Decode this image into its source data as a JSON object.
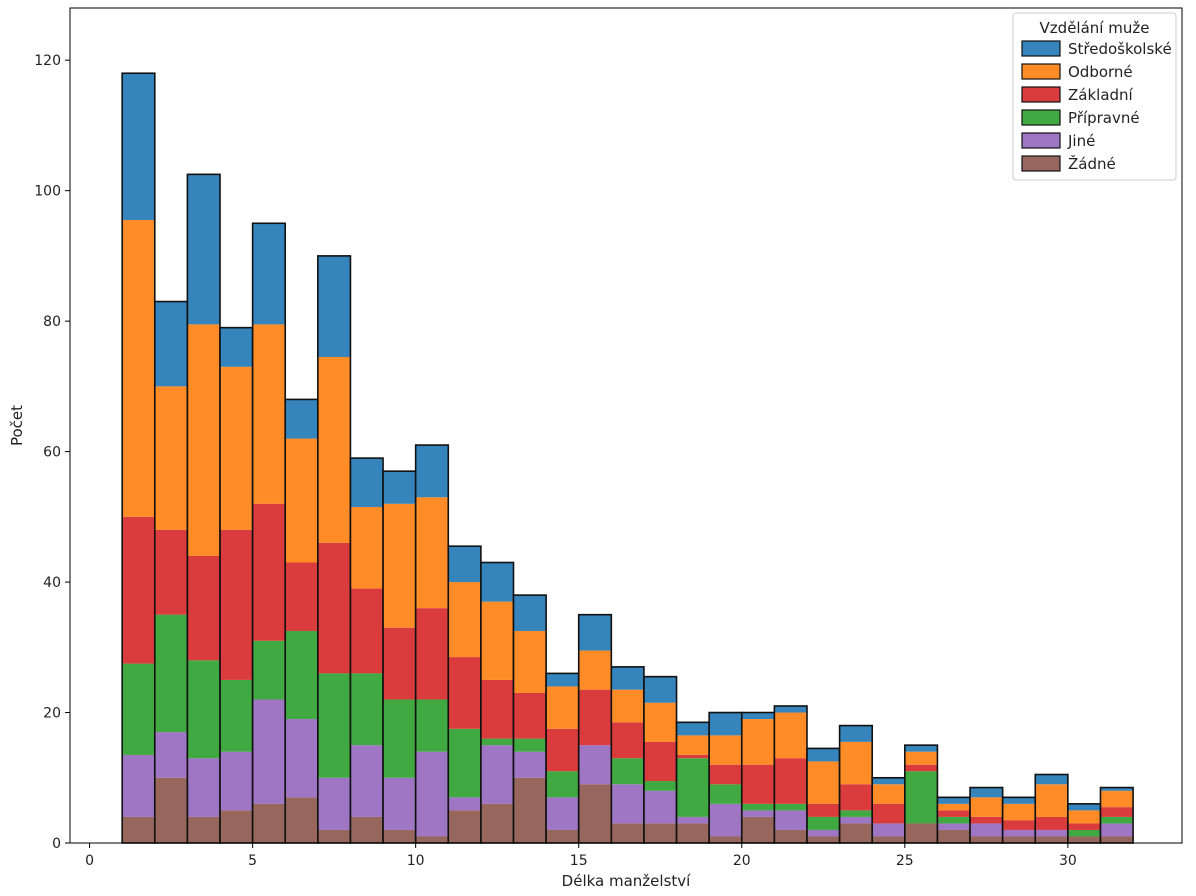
{
  "chart_data": {
    "type": "bar",
    "stacked": true,
    "histogram": true,
    "xlabel": "Délka manželství",
    "ylabel": "Počet",
    "xlim": [
      -0.6,
      33.5
    ],
    "ylim": [
      0,
      128
    ],
    "xticks": [
      0,
      5,
      10,
      15,
      20,
      25,
      30
    ],
    "yticks": [
      0,
      20,
      40,
      60,
      80,
      100,
      120
    ],
    "bin_start": 1,
    "bin_width": 1,
    "grid": false,
    "legend": {
      "title": "Vzdělání muže",
      "placement": "top-right"
    },
    "series": [
      {
        "name": "Žádné",
        "color": "#8c564b",
        "values": [
          4,
          10,
          4,
          5,
          6,
          7,
          2,
          4,
          2,
          1,
          5,
          6,
          10,
          2,
          9,
          3,
          3,
          3,
          1,
          4,
          2,
          1,
          3,
          1,
          3,
          2,
          1,
          1,
          1,
          1,
          1
        ]
      },
      {
        "name": "Jiné",
        "color": "#9467bd",
        "values": [
          9.5,
          7,
          9,
          9,
          16,
          12,
          8,
          11,
          8,
          13,
          2,
          9,
          4,
          5,
          6,
          6,
          5,
          1,
          5,
          1,
          3,
          1,
          1,
          2,
          0,
          1,
          2,
          1,
          1,
          0,
          2
        ]
      },
      {
        "name": "Přípravné",
        "color": "#2ca02c",
        "values": [
          14,
          18,
          15,
          11,
          9,
          13.5,
          16,
          11,
          12,
          8,
          10.5,
          1,
          2,
          4,
          0,
          4,
          1.5,
          9,
          3,
          1,
          1,
          2,
          1,
          0,
          8,
          1,
          0,
          0,
          0,
          1,
          1
        ]
      },
      {
        "name": "Základní",
        "color": "#d62728",
        "values": [
          22.5,
          13,
          16,
          23,
          21,
          10.5,
          20,
          13,
          11,
          14,
          11,
          9,
          7,
          6.5,
          8.5,
          5.5,
          6,
          0.5,
          3,
          6,
          7,
          2,
          4,
          3,
          1,
          1,
          1,
          1.5,
          2,
          1,
          1.5
        ]
      },
      {
        "name": "Odborné",
        "color": "#ff7f0e",
        "values": [
          45.5,
          22,
          35.5,
          25,
          27.5,
          19,
          28.5,
          12.5,
          19,
          17,
          11.5,
          12,
          9.5,
          6.5,
          6,
          5,
          6,
          3,
          4.5,
          7,
          7,
          6.5,
          6.5,
          3,
          2,
          1,
          3,
          2.5,
          5,
          2,
          2.5
        ]
      },
      {
        "name": "Středoškolské",
        "color": "#1f77b4",
        "values": [
          22.5,
          13,
          23,
          6,
          15.5,
          6,
          15.5,
          7.5,
          5,
          8,
          5.5,
          6,
          5.5,
          2,
          5.5,
          3.5,
          4,
          2,
          3.5,
          1,
          1,
          2,
          2.5,
          1,
          1,
          1,
          1.5,
          1,
          1.5,
          1,
          0.5
        ]
      }
    ]
  }
}
